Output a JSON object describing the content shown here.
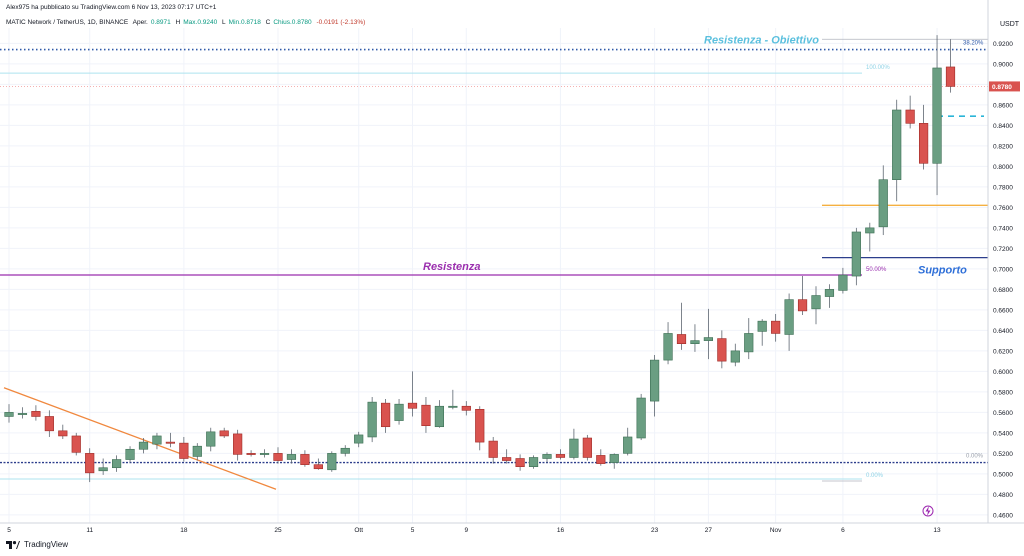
{
  "header": {
    "publisher": "Alex975 ha pubblicato su TradingView.com 6 Nov 13, 2023 07:17 UTC+1",
    "symbol": "MATIC Network / TetherUS, 1D, BINANCE",
    "open_label": "Aper.",
    "open_value": "0.8971",
    "high_label": "H",
    "high_value": "Max.0.9240",
    "low_label": "L",
    "low_value": "Min.0.8718",
    "close_label": "C",
    "close_value": "Chius.0.8780",
    "change_value": "-0.0191 (-2.13%)"
  },
  "footer": {
    "brand": "TradingView"
  },
  "colors": {
    "up": "#6a9e82",
    "down": "#d9534f",
    "fib_line": "#5a9bd5"
  },
  "chart_data": {
    "type": "candlestick",
    "currency": "USDT",
    "ylim": [
      0.455,
      0.935
    ],
    "y_ticks": [
      "0.9200",
      "0.9000",
      "0.8800",
      "0.8600",
      "0.8400",
      "0.8200",
      "0.8000",
      "0.7800",
      "0.7600",
      "0.7400",
      "0.7200",
      "0.7000",
      "0.6800",
      "0.6600",
      "0.6400",
      "0.6200",
      "0.6000",
      "0.5800",
      "0.5600",
      "0.5400",
      "0.5200",
      "0.5000",
      "0.4800",
      "0.4600"
    ],
    "x_ticks": [
      {
        "i": 0,
        "label": "5"
      },
      {
        "i": 6,
        "label": "11"
      },
      {
        "i": 13,
        "label": "18"
      },
      {
        "i": 20,
        "label": "25"
      },
      {
        "i": 26,
        "label": "Ott"
      },
      {
        "i": 30,
        "label": "5"
      },
      {
        "i": 34,
        "label": "9"
      },
      {
        "i": 41,
        "label": "16"
      },
      {
        "i": 48,
        "label": "23"
      },
      {
        "i": 52,
        "label": "27"
      },
      {
        "i": 57,
        "label": "Nov"
      },
      {
        "i": 62,
        "label": "6"
      },
      {
        "i": 69,
        "label": "13"
      }
    ],
    "candles": [
      {
        "o": 0.556,
        "h": 0.568,
        "l": 0.55,
        "c": 0.56
      },
      {
        "o": 0.559,
        "h": 0.565,
        "l": 0.554,
        "c": 0.559
      },
      {
        "o": 0.561,
        "h": 0.567,
        "l": 0.552,
        "c": 0.556
      },
      {
        "o": 0.556,
        "h": 0.562,
        "l": 0.536,
        "c": 0.542
      },
      {
        "o": 0.542,
        "h": 0.548,
        "l": 0.534,
        "c": 0.537
      },
      {
        "o": 0.537,
        "h": 0.54,
        "l": 0.518,
        "c": 0.521
      },
      {
        "o": 0.52,
        "h": 0.525,
        "l": 0.492,
        "c": 0.501
      },
      {
        "o": 0.503,
        "h": 0.515,
        "l": 0.499,
        "c": 0.506
      },
      {
        "o": 0.506,
        "h": 0.518,
        "l": 0.502,
        "c": 0.514
      },
      {
        "o": 0.514,
        "h": 0.527,
        "l": 0.511,
        "c": 0.524
      },
      {
        "o": 0.524,
        "h": 0.535,
        "l": 0.52,
        "c": 0.531
      },
      {
        "o": 0.529,
        "h": 0.54,
        "l": 0.524,
        "c": 0.537
      },
      {
        "o": 0.531,
        "h": 0.54,
        "l": 0.526,
        "c": 0.53
      },
      {
        "o": 0.53,
        "h": 0.536,
        "l": 0.512,
        "c": 0.515
      },
      {
        "o": 0.517,
        "h": 0.53,
        "l": 0.513,
        "c": 0.527
      },
      {
        "o": 0.527,
        "h": 0.545,
        "l": 0.522,
        "c": 0.541
      },
      {
        "o": 0.542,
        "h": 0.545,
        "l": 0.535,
        "c": 0.537
      },
      {
        "o": 0.539,
        "h": 0.543,
        "l": 0.513,
        "c": 0.519
      },
      {
        "o": 0.52,
        "h": 0.523,
        "l": 0.517,
        "c": 0.519
      },
      {
        "o": 0.52,
        "h": 0.524,
        "l": 0.516,
        "c": 0.52
      },
      {
        "o": 0.52,
        "h": 0.526,
        "l": 0.51,
        "c": 0.513
      },
      {
        "o": 0.514,
        "h": 0.524,
        "l": 0.51,
        "c": 0.519
      },
      {
        "o": 0.519,
        "h": 0.523,
        "l": 0.507,
        "c": 0.509
      },
      {
        "o": 0.509,
        "h": 0.515,
        "l": 0.504,
        "c": 0.505
      },
      {
        "o": 0.504,
        "h": 0.522,
        "l": 0.502,
        "c": 0.52
      },
      {
        "o": 0.52,
        "h": 0.528,
        "l": 0.517,
        "c": 0.525
      },
      {
        "o": 0.53,
        "h": 0.541,
        "l": 0.526,
        "c": 0.538
      },
      {
        "o": 0.536,
        "h": 0.575,
        "l": 0.531,
        "c": 0.57
      },
      {
        "o": 0.569,
        "h": 0.573,
        "l": 0.54,
        "c": 0.546
      },
      {
        "o": 0.552,
        "h": 0.573,
        "l": 0.548,
        "c": 0.568
      },
      {
        "o": 0.569,
        "h": 0.6,
        "l": 0.556,
        "c": 0.564
      },
      {
        "o": 0.567,
        "h": 0.575,
        "l": 0.54,
        "c": 0.547
      },
      {
        "o": 0.546,
        "h": 0.572,
        "l": 0.545,
        "c": 0.566
      },
      {
        "o": 0.565,
        "h": 0.582,
        "l": 0.563,
        "c": 0.566
      },
      {
        "o": 0.566,
        "h": 0.571,
        "l": 0.557,
        "c": 0.562
      },
      {
        "o": 0.563,
        "h": 0.566,
        "l": 0.523,
        "c": 0.531
      },
      {
        "o": 0.532,
        "h": 0.536,
        "l": 0.51,
        "c": 0.516
      },
      {
        "o": 0.516,
        "h": 0.524,
        "l": 0.51,
        "c": 0.513
      },
      {
        "o": 0.515,
        "h": 0.519,
        "l": 0.503,
        "c": 0.507
      },
      {
        "o": 0.507,
        "h": 0.518,
        "l": 0.505,
        "c": 0.516
      },
      {
        "o": 0.515,
        "h": 0.521,
        "l": 0.511,
        "c": 0.519
      },
      {
        "o": 0.519,
        "h": 0.524,
        "l": 0.514,
        "c": 0.516
      },
      {
        "o": 0.516,
        "h": 0.544,
        "l": 0.514,
        "c": 0.534
      },
      {
        "o": 0.535,
        "h": 0.538,
        "l": 0.513,
        "c": 0.516
      },
      {
        "o": 0.518,
        "h": 0.524,
        "l": 0.508,
        "c": 0.51
      },
      {
        "o": 0.511,
        "h": 0.52,
        "l": 0.505,
        "c": 0.519
      },
      {
        "o": 0.52,
        "h": 0.545,
        "l": 0.518,
        "c": 0.536
      },
      {
        "o": 0.535,
        "h": 0.578,
        "l": 0.533,
        "c": 0.574
      },
      {
        "o": 0.571,
        "h": 0.616,
        "l": 0.556,
        "c": 0.611
      },
      {
        "o": 0.611,
        "h": 0.648,
        "l": 0.607,
        "c": 0.637
      },
      {
        "o": 0.636,
        "h": 0.667,
        "l": 0.621,
        "c": 0.627
      },
      {
        "o": 0.627,
        "h": 0.646,
        "l": 0.619,
        "c": 0.63
      },
      {
        "o": 0.63,
        "h": 0.661,
        "l": 0.612,
        "c": 0.633
      },
      {
        "o": 0.632,
        "h": 0.64,
        "l": 0.603,
        "c": 0.61
      },
      {
        "o": 0.609,
        "h": 0.627,
        "l": 0.605,
        "c": 0.62
      },
      {
        "o": 0.619,
        "h": 0.652,
        "l": 0.612,
        "c": 0.637
      },
      {
        "o": 0.639,
        "h": 0.651,
        "l": 0.625,
        "c": 0.649
      },
      {
        "o": 0.649,
        "h": 0.656,
        "l": 0.629,
        "c": 0.637
      },
      {
        "o": 0.636,
        "h": 0.676,
        "l": 0.62,
        "c": 0.67
      },
      {
        "o": 0.67,
        "h": 0.693,
        "l": 0.655,
        "c": 0.659
      },
      {
        "o": 0.661,
        "h": 0.683,
        "l": 0.646,
        "c": 0.674
      },
      {
        "o": 0.673,
        "h": 0.685,
        "l": 0.662,
        "c": 0.68
      },
      {
        "o": 0.679,
        "h": 0.701,
        "l": 0.676,
        "c": 0.694
      },
      {
        "o": 0.693,
        "h": 0.74,
        "l": 0.684,
        "c": 0.736
      },
      {
        "o": 0.735,
        "h": 0.745,
        "l": 0.717,
        "c": 0.74
      },
      {
        "o": 0.741,
        "h": 0.801,
        "l": 0.733,
        "c": 0.787
      },
      {
        "o": 0.787,
        "h": 0.865,
        "l": 0.766,
        "c": 0.855
      },
      {
        "o": 0.855,
        "h": 0.869,
        "l": 0.837,
        "c": 0.842
      },
      {
        "o": 0.842,
        "h": 0.86,
        "l": 0.797,
        "c": 0.803
      },
      {
        "o": 0.803,
        "h": 0.928,
        "l": 0.772,
        "c": 0.896
      },
      {
        "o": 0.897,
        "h": 0.924,
        "l": 0.872,
        "c": 0.878
      }
    ],
    "annotations": {
      "resistance_target": {
        "text": "Resistenza - Obiettivo",
        "price": 0.914,
        "fib_label": "38.20%"
      },
      "resistance": {
        "text": "Resistenza",
        "price": 0.694,
        "fib_label": "50.00%"
      },
      "support": {
        "text": "Supporto",
        "price": 0.711
      },
      "fib_100": {
        "label": "100.00%",
        "price": 0.891
      },
      "fib_0": {
        "label": "0.00%",
        "price": 0.495
      },
      "fib_0b": {
        "label": "0.00%",
        "price": 0.511
      },
      "orange_level": 0.762,
      "cyan_dashed": 0.849,
      "current_price": {
        "label": "0.8780",
        "price": 0.878
      }
    },
    "trendline": {
      "from": {
        "i": 0,
        "price": 0.584
      },
      "to": {
        "i": 22,
        "price": 0.485
      }
    }
  }
}
